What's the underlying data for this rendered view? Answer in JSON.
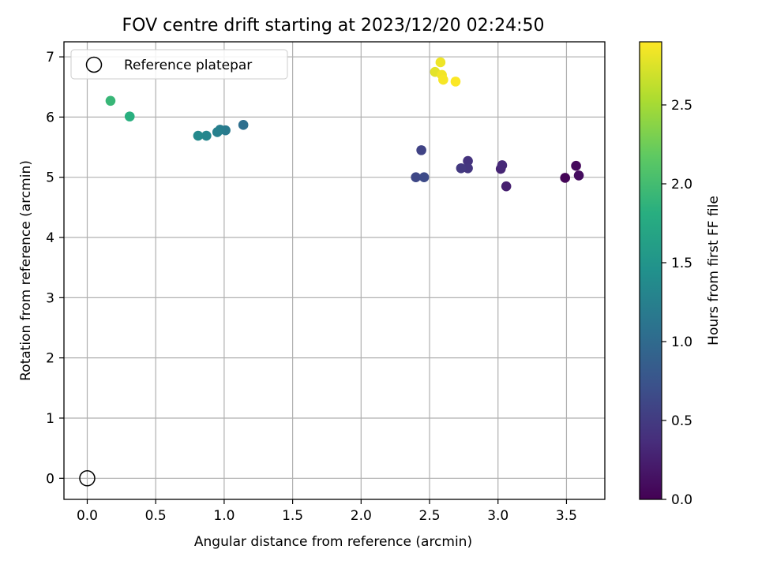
{
  "chart_data": {
    "type": "scatter",
    "title": "FOV centre drift starting at 2023/12/20 02:24:50",
    "xlabel": "Angular distance from reference (arcmin)",
    "ylabel": "Rotation from reference (arcmin)",
    "xlim": [
      -0.17,
      3.78
    ],
    "ylim": [
      -0.35,
      7.25
    ],
    "xticks": [
      0.0,
      0.5,
      1.0,
      1.5,
      2.0,
      2.5,
      3.0,
      3.5
    ],
    "xtick_labels": [
      "0.0",
      "0.5",
      "1.0",
      "1.5",
      "2.0",
      "2.5",
      "3.0",
      "3.5"
    ],
    "yticks": [
      0,
      1,
      2,
      3,
      4,
      5,
      6,
      7
    ],
    "ytick_labels": [
      "0",
      "1",
      "2",
      "3",
      "4",
      "5",
      "6",
      "7"
    ],
    "grid": true,
    "legend": {
      "position": "top-left",
      "entries": [
        "Reference platepar"
      ]
    },
    "reference": {
      "x": 0.0,
      "y": 0.0,
      "marker": "open-circle"
    },
    "colorbar": {
      "label": "Hours from first FF file",
      "colormap": "viridis",
      "range": [
        0.0,
        2.9
      ],
      "ticks": [
        0.0,
        0.5,
        1.0,
        1.5,
        2.0,
        2.5
      ],
      "tick_labels": [
        "0.0",
        "0.5",
        "1.0",
        "1.5",
        "2.0",
        "2.5"
      ]
    },
    "points": [
      {
        "x": 3.49,
        "y": 4.99,
        "hours": 0.03
      },
      {
        "x": 3.57,
        "y": 5.19,
        "hours": 0.07
      },
      {
        "x": 3.59,
        "y": 5.03,
        "hours": 0.1
      },
      {
        "x": 3.06,
        "y": 4.85,
        "hours": 0.25
      },
      {
        "x": 3.02,
        "y": 5.14,
        "hours": 0.3
      },
      {
        "x": 3.03,
        "y": 5.2,
        "hours": 0.33
      },
      {
        "x": 2.78,
        "y": 5.27,
        "hours": 0.42
      },
      {
        "x": 2.78,
        "y": 5.15,
        "hours": 0.45
      },
      {
        "x": 2.73,
        "y": 5.15,
        "hours": 0.48
      },
      {
        "x": 2.44,
        "y": 5.45,
        "hours": 0.58
      },
      {
        "x": 2.4,
        "y": 5.0,
        "hours": 0.62
      },
      {
        "x": 2.46,
        "y": 5.0,
        "hours": 0.65
      },
      {
        "x": 1.14,
        "y": 5.87,
        "hours": 1.05
      },
      {
        "x": 1.01,
        "y": 5.78,
        "hours": 1.18
      },
      {
        "x": 0.97,
        "y": 5.79,
        "hours": 1.22
      },
      {
        "x": 0.95,
        "y": 5.75,
        "hours": 1.25
      },
      {
        "x": 0.87,
        "y": 5.69,
        "hours": 1.32
      },
      {
        "x": 0.81,
        "y": 5.69,
        "hours": 1.36
      },
      {
        "x": 0.31,
        "y": 6.01,
        "hours": 1.82
      },
      {
        "x": 0.17,
        "y": 6.27,
        "hours": 1.92
      },
      {
        "x": 2.54,
        "y": 6.75,
        "hours": 2.78
      },
      {
        "x": 2.58,
        "y": 6.91,
        "hours": 2.83
      },
      {
        "x": 2.59,
        "y": 6.7,
        "hours": 2.85
      },
      {
        "x": 2.6,
        "y": 6.62,
        "hours": 2.87
      },
      {
        "x": 2.69,
        "y": 6.59,
        "hours": 2.89
      }
    ]
  }
}
